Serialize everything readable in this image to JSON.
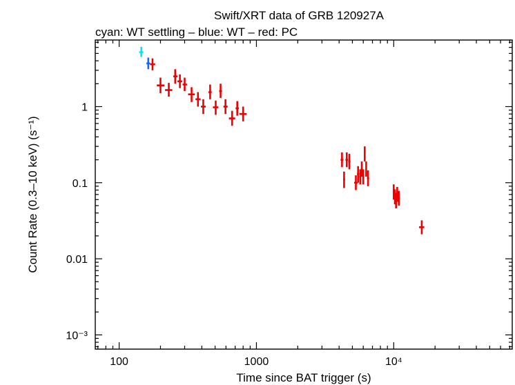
{
  "chart_data": {
    "type": "scatter",
    "title": "Swift/XRT data of GRB 120927A",
    "subtitle": "cyan: WT settling – blue: WT – red: PC",
    "xlabel": "Time since BAT trigger (s)",
    "ylabel": "Count Rate (0.3–10 keV) (s⁻¹)",
    "xscale": "log",
    "yscale": "log",
    "xlim": [
      67,
      73000
    ],
    "ylim": [
      0.00065,
      7.5
    ],
    "x_ticks": [
      {
        "value": 100,
        "label": "100"
      },
      {
        "value": 1000,
        "label": "1000"
      },
      {
        "value": 10000,
        "label": "10⁴"
      }
    ],
    "y_ticks": [
      {
        "value": 0.001,
        "label": "10⁻³"
      },
      {
        "value": 0.01,
        "label": "0.01"
      },
      {
        "value": 0.1,
        "label": "0.1"
      },
      {
        "value": 1,
        "label": "1"
      }
    ],
    "series": [
      {
        "name": "WT settling",
        "color": "#00e5ff",
        "points": [
          {
            "x": 145,
            "y": 5.2,
            "xlo": 140,
            "xhi": 150,
            "ylo": 4.5,
            "yhi": 6.1
          }
        ]
      },
      {
        "name": "WT",
        "color": "#1565ff",
        "points": [
          {
            "x": 163,
            "y": 3.7,
            "xlo": 158,
            "xhi": 168,
            "ylo": 3.1,
            "yhi": 4.4
          }
        ]
      },
      {
        "name": "PC",
        "color": "#ee0000",
        "points": [
          {
            "x": 175,
            "y": 3.6,
            "xlo": 168,
            "xhi": 183,
            "ylo": 3.0,
            "yhi": 4.3
          },
          {
            "x": 200,
            "y": 1.9,
            "xlo": 188,
            "xhi": 214,
            "ylo": 1.5,
            "yhi": 2.4
          },
          {
            "x": 230,
            "y": 1.65,
            "xlo": 216,
            "xhi": 244,
            "ylo": 1.35,
            "yhi": 2.05
          },
          {
            "x": 256,
            "y": 2.5,
            "xlo": 248,
            "xhi": 266,
            "ylo": 2.0,
            "yhi": 3.1
          },
          {
            "x": 277,
            "y": 2.15,
            "xlo": 266,
            "xhi": 288,
            "ylo": 1.75,
            "yhi": 2.65
          },
          {
            "x": 300,
            "y": 1.95,
            "xlo": 290,
            "xhi": 312,
            "ylo": 1.6,
            "yhi": 2.4
          },
          {
            "x": 337,
            "y": 1.45,
            "xlo": 318,
            "xhi": 356,
            "ylo": 1.15,
            "yhi": 1.8
          },
          {
            "x": 375,
            "y": 1.25,
            "xlo": 360,
            "xhi": 392,
            "ylo": 1.0,
            "yhi": 1.55
          },
          {
            "x": 410,
            "y": 1.0,
            "xlo": 394,
            "xhi": 428,
            "ylo": 0.8,
            "yhi": 1.25
          },
          {
            "x": 460,
            "y": 1.55,
            "xlo": 448,
            "xhi": 472,
            "ylo": 1.25,
            "yhi": 1.95
          },
          {
            "x": 505,
            "y": 0.98,
            "xlo": 482,
            "xhi": 528,
            "ylo": 0.78,
            "yhi": 1.2
          },
          {
            "x": 548,
            "y": 1.6,
            "xlo": 535,
            "xhi": 561,
            "ylo": 1.3,
            "yhi": 2.0
          },
          {
            "x": 595,
            "y": 1.0,
            "xlo": 575,
            "xhi": 617,
            "ylo": 0.8,
            "yhi": 1.25
          },
          {
            "x": 665,
            "y": 0.7,
            "xlo": 630,
            "xhi": 700,
            "ylo": 0.56,
            "yhi": 0.88
          },
          {
            "x": 725,
            "y": 0.95,
            "xlo": 705,
            "xhi": 745,
            "ylo": 0.76,
            "yhi": 1.18
          },
          {
            "x": 800,
            "y": 0.8,
            "xlo": 752,
            "xhi": 848,
            "ylo": 0.64,
            "yhi": 1.0
          },
          {
            "x": 4200,
            "y": 0.2,
            "xlo": 4100,
            "xhi": 4300,
            "ylo": 0.16,
            "yhi": 0.25
          },
          {
            "x": 4350,
            "y": 0.11,
            "xlo": 4280,
            "xhi": 4420,
            "ylo": 0.085,
            "yhi": 0.14
          },
          {
            "x": 4550,
            "y": 0.2,
            "xlo": 4450,
            "xhi": 4650,
            "ylo": 0.16,
            "yhi": 0.25
          },
          {
            "x": 4750,
            "y": 0.19,
            "xlo": 4660,
            "xhi": 4840,
            "ylo": 0.15,
            "yhi": 0.24
          },
          {
            "x": 5300,
            "y": 0.1,
            "xlo": 5150,
            "xhi": 5450,
            "ylo": 0.08,
            "yhi": 0.125
          },
          {
            "x": 5500,
            "y": 0.13,
            "xlo": 5400,
            "xhi": 5600,
            "ylo": 0.1,
            "yhi": 0.165
          },
          {
            "x": 5700,
            "y": 0.12,
            "xlo": 5600,
            "xhi": 5800,
            "ylo": 0.095,
            "yhi": 0.15
          },
          {
            "x": 5850,
            "y": 0.15,
            "xlo": 5760,
            "xhi": 5940,
            "ylo": 0.12,
            "yhi": 0.19
          },
          {
            "x": 6000,
            "y": 0.12,
            "xlo": 5920,
            "xhi": 6080,
            "ylo": 0.095,
            "yhi": 0.15
          },
          {
            "x": 6150,
            "y": 0.24,
            "xlo": 6080,
            "xhi": 6220,
            "ylo": 0.19,
            "yhi": 0.3
          },
          {
            "x": 6300,
            "y": 0.15,
            "xlo": 6230,
            "xhi": 6370,
            "ylo": 0.12,
            "yhi": 0.19
          },
          {
            "x": 6500,
            "y": 0.115,
            "xlo": 6380,
            "xhi": 6620,
            "ylo": 0.09,
            "yhi": 0.145
          },
          {
            "x": 10000,
            "y": 0.075,
            "xlo": 9850,
            "xhi": 10150,
            "ylo": 0.06,
            "yhi": 0.095
          },
          {
            "x": 10200,
            "y": 0.065,
            "xlo": 10080,
            "xhi": 10320,
            "ylo": 0.052,
            "yhi": 0.082
          },
          {
            "x": 10400,
            "y": 0.058,
            "xlo": 10300,
            "xhi": 10500,
            "ylo": 0.046,
            "yhi": 0.073
          },
          {
            "x": 10600,
            "y": 0.07,
            "xlo": 10500,
            "xhi": 10700,
            "ylo": 0.056,
            "yhi": 0.088
          },
          {
            "x": 10900,
            "y": 0.062,
            "xlo": 10700,
            "xhi": 11100,
            "ylo": 0.05,
            "yhi": 0.078
          },
          {
            "x": 16000,
            "y": 0.026,
            "xlo": 15300,
            "xhi": 16700,
            "ylo": 0.021,
            "yhi": 0.032
          }
        ]
      }
    ]
  }
}
